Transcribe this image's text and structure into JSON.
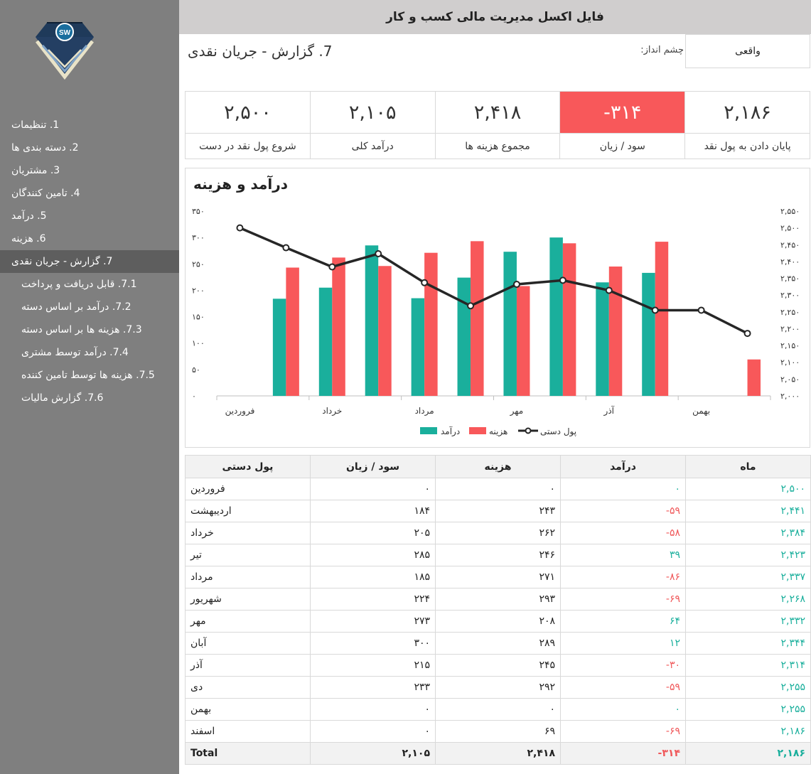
{
  "header": {
    "title": "فایل اکسل مدیریت مالی کسب و کار"
  },
  "logo": {
    "icon": "diamond-logo-icon",
    "text": "SW"
  },
  "sidebar": {
    "items": [
      {
        "label": "1. تنظیمات",
        "level": "top"
      },
      {
        "label": "2. دسته بندی ها",
        "level": "top"
      },
      {
        "label": "3. مشتریان",
        "level": "top"
      },
      {
        "label": "4. تامین کنندگان",
        "level": "top"
      },
      {
        "label": "5. درآمد",
        "level": "top"
      },
      {
        "label": "6. هزینه",
        "level": "top"
      },
      {
        "label": "7. گزارش - جریان نقدی",
        "level": "top",
        "active": true
      },
      {
        "label": "7.1. قابل دریافت و پرداخت",
        "level": "sub"
      },
      {
        "label": "7.2. درآمد بر اساس دسته",
        "level": "sub"
      },
      {
        "label": "7.3. هزینه ها بر اساس دسته",
        "level": "sub"
      },
      {
        "label": "7.4. درآمد توسط مشتری",
        "level": "sub"
      },
      {
        "label": "7.5. هزینه ها توسط تامین کننده",
        "level": "sub"
      },
      {
        "label": "7.6. گزارش مالیات",
        "level": "sub"
      }
    ]
  },
  "page": {
    "title": "7. گزارش - جریان نقدی",
    "scenario_label": "چشم انداز:",
    "scenario_value": "واقعی"
  },
  "kpis": [
    {
      "value": "۲,۱۸۶",
      "label": "پایان دادن به پول نقد"
    },
    {
      "value": "-۳۱۴",
      "label": "سود / زیان",
      "negative": true
    },
    {
      "value": "۲,۴۱۸",
      "label": "مجموع هزینه ها"
    },
    {
      "value": "۲,۱۰۵",
      "label": "درآمد کلی"
    },
    {
      "value": "۲,۵۰۰",
      "label": "شروع پول نقد در دست"
    }
  ],
  "colors": {
    "income": "#1aaf9c",
    "expense": "#f8585a",
    "cash_line": "#262626",
    "sidebar": "#7f7f7f",
    "header": "#d0cece"
  },
  "chart_data": {
    "type": "bar",
    "title": "درآمد و هزینه",
    "categories": [
      "فروردین",
      "اردیبهشت",
      "خرداد",
      "تیر",
      "مرداد",
      "شهریور",
      "مهر",
      "آبان",
      "آذر",
      "دی",
      "بهمن",
      "اسفند"
    ],
    "x_tick_labels": [
      "فروردین",
      "",
      "خرداد",
      "",
      "مرداد",
      "",
      "مهر",
      "",
      "آذر",
      "",
      "بهمن",
      ""
    ],
    "series": [
      {
        "name": "درآمد",
        "type": "bar",
        "axis": "left",
        "values": [
          0,
          184,
          205,
          285,
          185,
          224,
          273,
          300,
          215,
          233,
          0,
          0
        ]
      },
      {
        "name": "هزینه",
        "type": "bar",
        "axis": "left",
        "values": [
          0,
          243,
          262,
          246,
          271,
          293,
          208,
          289,
          245,
          292,
          0,
          69
        ]
      },
      {
        "name": "پول دستی",
        "type": "line",
        "axis": "right",
        "values": [
          2500,
          2441,
          2384,
          2423,
          2337,
          2268,
          2332,
          2344,
          2314,
          2255,
          2255,
          2186
        ]
      }
    ],
    "ylim_left": [
      0,
      350
    ],
    "ylim_right": [
      2000,
      2550
    ],
    "yticks_left": [
      "۰",
      "۵۰",
      "۱۰۰",
      "۱۵۰",
      "۲۰۰",
      "۲۵۰",
      "۳۰۰",
      "۳۵۰"
    ],
    "yticks_right": [
      "۲,۰۰۰",
      "۲,۰۵۰",
      "۲,۱۰۰",
      "۲,۱۵۰",
      "۲,۲۰۰",
      "۲,۲۵۰",
      "۲,۳۰۰",
      "۲,۳۵۰",
      "۲,۴۰۰",
      "۲,۴۵۰",
      "۲,۵۰۰",
      "۲,۵۵۰"
    ],
    "legend_position": "bottom",
    "grid": false
  },
  "table": {
    "headers": [
      "ماه",
      "درآمد",
      "هزینه",
      "سود / زیان",
      "پول دستی"
    ],
    "rows": [
      {
        "month": "فروردین",
        "income": "۰",
        "expense": "۰",
        "profit": "۰",
        "cash": "۲,۵۰۰",
        "sign": "zero"
      },
      {
        "month": "اردیبهشت",
        "income": "۱۸۴",
        "expense": "۲۴۳",
        "profit": "-۵۹",
        "cash": "۲,۴۴۱",
        "sign": "neg"
      },
      {
        "month": "خرداد",
        "income": "۲۰۵",
        "expense": "۲۶۲",
        "profit": "-۵۸",
        "cash": "۲,۳۸۴",
        "sign": "neg"
      },
      {
        "month": "تیر",
        "income": "۲۸۵",
        "expense": "۲۴۶",
        "profit": "۳۹",
        "cash": "۲,۴۲۳",
        "sign": "pos"
      },
      {
        "month": "مرداد",
        "income": "۱۸۵",
        "expense": "۲۷۱",
        "profit": "-۸۶",
        "cash": "۲,۳۳۷",
        "sign": "neg"
      },
      {
        "month": "شهریور",
        "income": "۲۲۴",
        "expense": "۲۹۳",
        "profit": "-۶۹",
        "cash": "۲,۲۶۸",
        "sign": "neg"
      },
      {
        "month": "مهر",
        "income": "۲۷۳",
        "expense": "۲۰۸",
        "profit": "۶۴",
        "cash": "۲,۳۳۲",
        "sign": "pos"
      },
      {
        "month": "آبان",
        "income": "۳۰۰",
        "expense": "۲۸۹",
        "profit": "۱۲",
        "cash": "۲,۳۴۴",
        "sign": "pos"
      },
      {
        "month": "آذر",
        "income": "۲۱۵",
        "expense": "۲۴۵",
        "profit": "-۳۰",
        "cash": "۲,۳۱۴",
        "sign": "neg"
      },
      {
        "month": "دی",
        "income": "۲۳۳",
        "expense": "۲۹۲",
        "profit": "-۵۹",
        "cash": "۲,۲۵۵",
        "sign": "neg"
      },
      {
        "month": "بهمن",
        "income": "۰",
        "expense": "۰",
        "profit": "۰",
        "cash": "۲,۲۵۵",
        "sign": "zero"
      },
      {
        "month": "اسفند",
        "income": "۰",
        "expense": "۶۹",
        "profit": "-۶۹",
        "cash": "۲,۱۸۶",
        "sign": "neg"
      }
    ],
    "total": {
      "label": "Total",
      "income": "۲,۱۰۵",
      "expense": "۲,۴۱۸",
      "profit": "-۳۱۴",
      "cash": "۲,۱۸۶"
    }
  }
}
